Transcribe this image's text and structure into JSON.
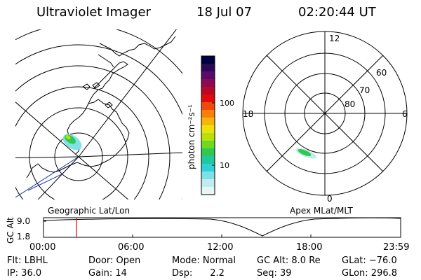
{
  "header": {
    "instrument": "Ultraviolet Imager",
    "date": "18 Jul 07",
    "time": "02:20:44 UT"
  },
  "colorbar": {
    "unit_label": "photon cm⁻²s⁻¹",
    "ticks": [
      "100",
      "10"
    ],
    "colors": [
      "#000040",
      "#2a0a55",
      "#5a0a6a",
      "#8a0a55",
      "#b80a25",
      "#e00a0a",
      "#f04a0a",
      "#f8800a",
      "#f8b40a",
      "#f0e00a",
      "#b8e010",
      "#70d820",
      "#30c850",
      "#20c8a0",
      "#30d0d8",
      "#80e0e8",
      "#c0ecf0",
      "#e8f4f6"
    ]
  },
  "left_panel": {
    "caption": "Geographic Lat/Lon"
  },
  "right_panel": {
    "caption": "Apex MLat/MLT",
    "mlt_labels": {
      "top": "12",
      "left": "18",
      "right": "6",
      "bottom": "0"
    },
    "lat_labels": [
      "60",
      "70",
      "80"
    ]
  },
  "altitude_plot": {
    "ylabel": "GC Alt",
    "yticks": [
      "9.0",
      "1.8"
    ],
    "xticks": [
      "00:00",
      "06:00",
      "12:00",
      "18:00",
      "23:59"
    ],
    "marker_color": "#e00000"
  },
  "info": {
    "flt": "Flt: LBHL",
    "ip": "IP: 36.0",
    "door": "Door: Open",
    "gain": "Gain: 14",
    "mode": "Mode: Normal",
    "dsp": "Dsp:      2.2",
    "gcalt": "GC Alt: 8.0 Re",
    "seq": "Seq: 39",
    "glat": "GLat: −76.0",
    "glon": "GLon: 296.8"
  }
}
